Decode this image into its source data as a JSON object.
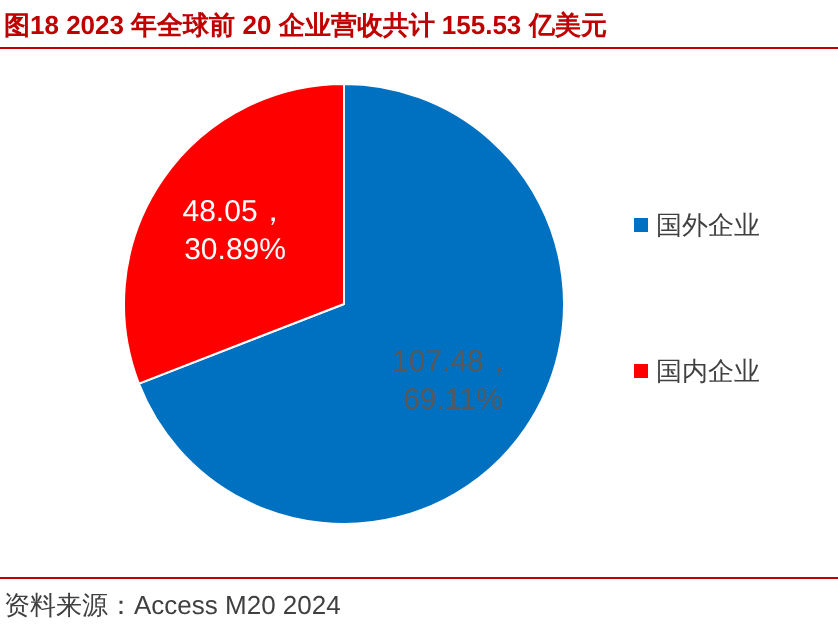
{
  "chart_data": {
    "type": "pie",
    "title": "图18  2023 年全球前 20 企业营收共计 155.53 亿美元",
    "categories": [
      "国外企业",
      "国内企业"
    ],
    "values": [
      107.48,
      48.05
    ],
    "colors": [
      "#0070c0",
      "#ff0000"
    ],
    "value_labels": [
      "107.48，\n69.11%",
      "48.05，\n30.89%"
    ],
    "legend": "right",
    "annotations": [
      "资料来源：Access M20 2024"
    ]
  }
}
